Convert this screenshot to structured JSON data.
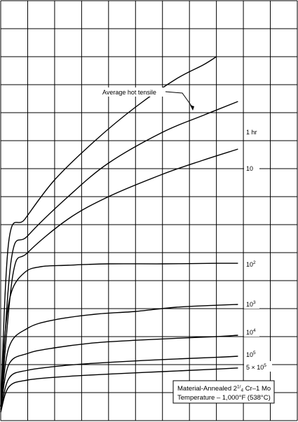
{
  "chart_data": {
    "type": "line",
    "title": "",
    "xlabel": "",
    "ylabel": "",
    "grid": true,
    "x_divisions": 11,
    "y_divisions": 15,
    "xlim": [
      0,
      11
    ],
    "ylim": [
      0,
      15
    ],
    "series": [
      {
        "name": "Average hot tensile",
        "x": [
          0,
          0.3,
          0.9,
          2,
          3.5,
          5,
          6.5,
          7.5,
          8.0
        ],
        "y": [
          0.5,
          6.4,
          7.2,
          8.6,
          10.0,
          11.2,
          12.2,
          12.7,
          13.0
        ]
      },
      {
        "name": "1 hr",
        "x": [
          0,
          0.4,
          1,
          2.5,
          4,
          6,
          7.5,
          8.8
        ],
        "y": [
          0.5,
          5.8,
          6.6,
          8.0,
          9.2,
          10.3,
          10.9,
          11.4
        ]
      },
      {
        "name": "10",
        "x": [
          0,
          0.45,
          1,
          2.5,
          4,
          6,
          7.5,
          8.8
        ],
        "y": [
          0.5,
          5.2,
          6.0,
          7.2,
          8.0,
          8.8,
          9.3,
          9.7
        ]
      },
      {
        "name": "10²",
        "x": [
          0,
          0.15,
          0.4,
          0.9,
          1.5,
          2.5,
          4,
          6,
          8,
          8.8
        ],
        "y": [
          0.5,
          3.0,
          4.6,
          5.3,
          5.5,
          5.55,
          5.6,
          5.6,
          5.62,
          5.62
        ]
      },
      {
        "name": "10³",
        "x": [
          0,
          0.3,
          1,
          2,
          3.5,
          5,
          6.5,
          8,
          8.8
        ],
        "y": [
          0.4,
          2.6,
          3.3,
          3.6,
          3.8,
          3.9,
          4.05,
          4.12,
          4.15
        ]
      },
      {
        "name": "10⁴",
        "x": [
          0,
          0.3,
          1,
          2,
          3.5,
          5,
          6.5,
          8,
          8.8
        ],
        "y": [
          0.4,
          2.0,
          2.4,
          2.6,
          2.78,
          2.87,
          2.94,
          3.0,
          3.05
        ]
      },
      {
        "name": "10⁵",
        "x": [
          0,
          0.3,
          1,
          2.5,
          4,
          6,
          8,
          8.8
        ],
        "y": [
          0.3,
          1.5,
          1.8,
          1.98,
          2.08,
          2.18,
          2.26,
          2.3
        ]
      },
      {
        "name": "5 × 10⁵",
        "x": [
          0,
          0.3,
          1,
          2.5,
          4,
          6,
          8,
          8.8
        ],
        "y": [
          0.3,
          1.2,
          1.45,
          1.58,
          1.66,
          1.75,
          1.84,
          1.88
        ]
      }
    ],
    "curve_labels": [
      {
        "series": "Average hot tensile",
        "text": "Average hot tensile"
      },
      {
        "series": "1 hr",
        "base": "1 hr",
        "sup": ""
      },
      {
        "series": "10",
        "base": "10",
        "sup": ""
      },
      {
        "series": "10²",
        "base": "10",
        "sup": "2"
      },
      {
        "series": "10³",
        "base": "10",
        "sup": "3"
      },
      {
        "series": "10⁴",
        "base": "10",
        "sup": "4"
      },
      {
        "series": "10⁵",
        "base": "10",
        "sup": "5"
      },
      {
        "series": "5 × 10⁵",
        "base": "5 × 10",
        "sup": "5"
      }
    ],
    "annotation": {
      "line1_before": "Material-Annealed 2",
      "line1_frac_num": "1",
      "line1_frac_den": "4",
      "line1_after": " Cr–1 Mo",
      "line2": "Temperature – 1,000°F (538°C)"
    }
  }
}
